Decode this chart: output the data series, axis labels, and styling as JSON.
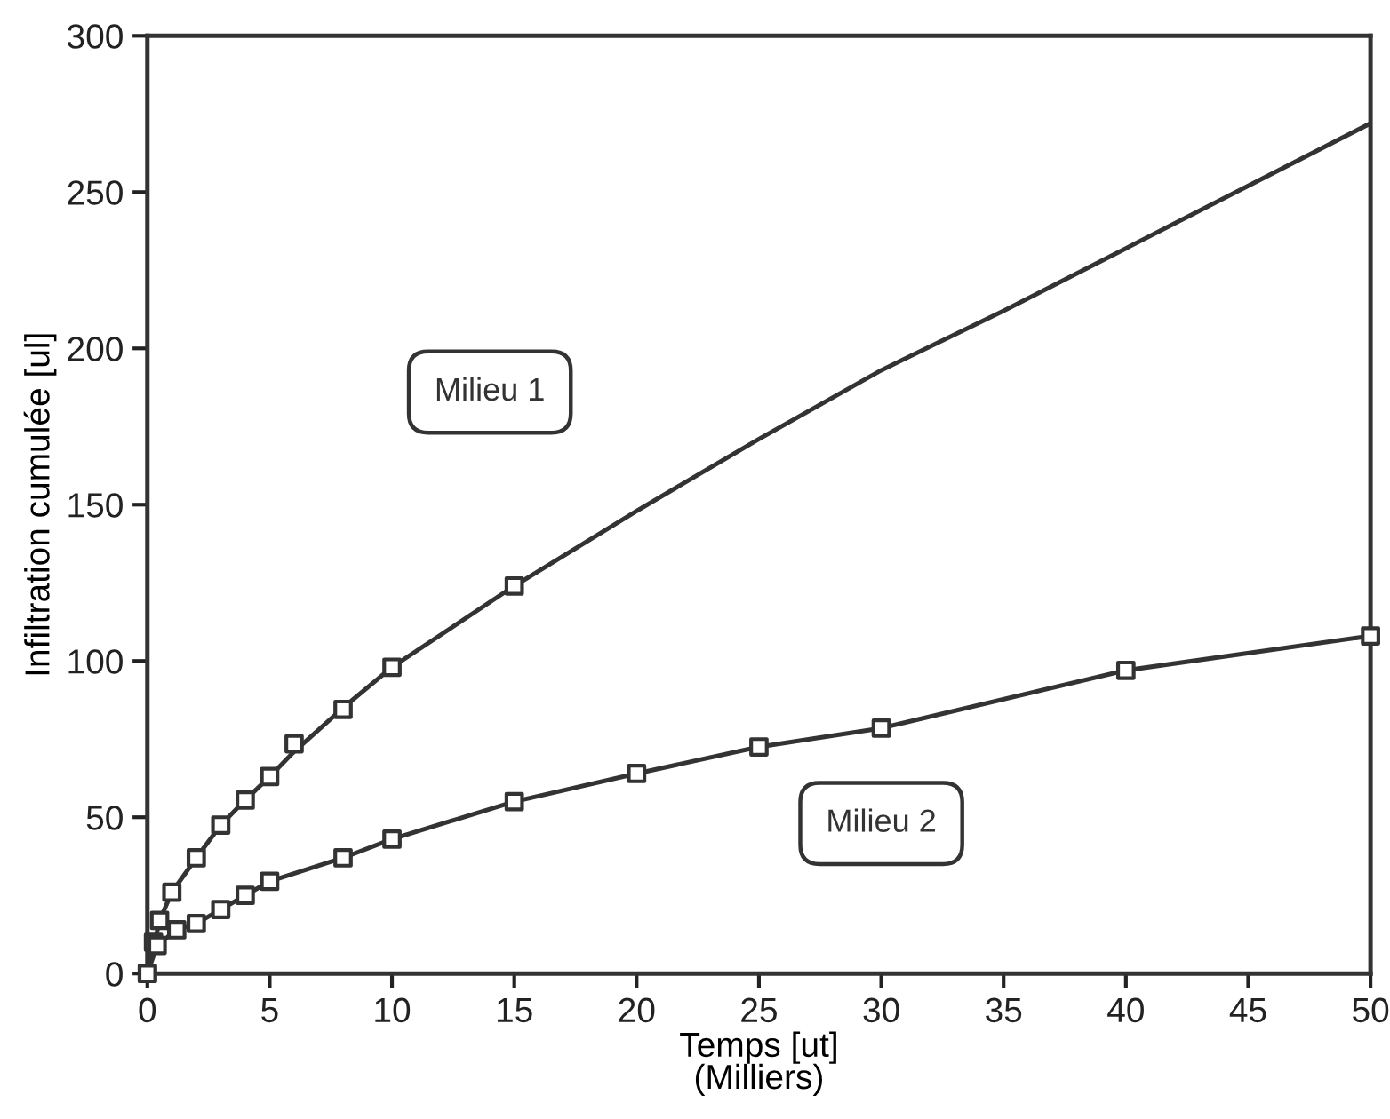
{
  "chart_data": {
    "type": "line",
    "xlabel": "Temps [ut]\n(Milliers)",
    "ylabel": "Infiltration cumulée [ul]",
    "xlim": [
      0,
      50
    ],
    "xticks": [
      0,
      5,
      10,
      15,
      20,
      25,
      30,
      35,
      40,
      45,
      50
    ],
    "ylim": [
      0,
      300
    ],
    "yticks": [
      0,
      50,
      100,
      150,
      200,
      250,
      300
    ],
    "grid": false,
    "legend": false,
    "series": [
      {
        "name": "Milieu 1",
        "color": "#333333",
        "marker": "none",
        "line_style": "solid",
        "x": [
          0,
          0.5,
          1,
          2,
          3,
          4,
          5,
          6,
          8,
          10,
          15,
          20,
          25,
          30,
          35,
          40,
          45,
          50
        ],
        "values": [
          0,
          17,
          26,
          37,
          47.5,
          55.5,
          63,
          71,
          85,
          98,
          124,
          148,
          171,
          193,
          212,
          232,
          252,
          272
        ]
      },
      {
        "type": "scatter",
        "color": "#333333",
        "marker": "square",
        "x": [
          0,
          0.25,
          0.5,
          1,
          2,
          3,
          4,
          5,
          6,
          8,
          10,
          15
        ],
        "values": [
          0,
          10,
          17,
          26,
          37,
          47.5,
          55.5,
          63,
          73.5,
          84.5,
          98,
          124
        ]
      },
      {
        "name": "Milieu 2",
        "color": "#333333",
        "marker": "none",
        "line_style": "solid",
        "x": [
          0,
          0.4,
          1.2,
          2,
          3,
          4,
          5,
          8,
          10,
          15,
          20,
          25,
          30,
          40,
          50
        ],
        "values": [
          0,
          9,
          14,
          16,
          20.5,
          25,
          29.5,
          37,
          43,
          55,
          64,
          72.5,
          78.5,
          97,
          108
        ]
      },
      {
        "type": "scatter",
        "color": "#333333",
        "marker": "square",
        "x": [
          0,
          0.4,
          1.2,
          2,
          3,
          4,
          5,
          8,
          10,
          15,
          20,
          25,
          30,
          40,
          50
        ],
        "values": [
          0,
          9,
          14,
          16,
          20.5,
          25,
          29.5,
          37,
          43,
          55,
          64,
          72.5,
          78.5,
          97,
          108
        ]
      }
    ]
  }
}
